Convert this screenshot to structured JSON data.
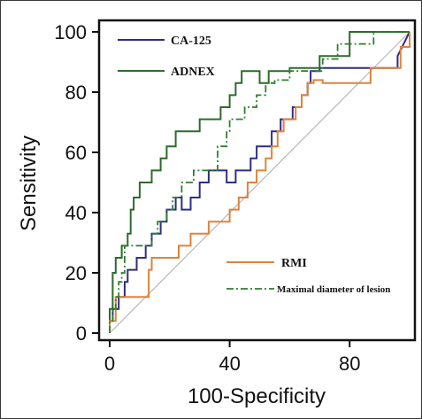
{
  "chart_data": {
    "type": "line",
    "title": "",
    "xlabel": "100-Specificity",
    "ylabel": "Sensitivity",
    "xlim": [
      0,
      100
    ],
    "ylim": [
      0,
      100
    ],
    "xticks": [
      "0",
      "40",
      "80"
    ],
    "yticks": [
      "0",
      "20",
      "40",
      "60",
      "80",
      "100"
    ],
    "grid": false,
    "legends": [
      {
        "placement": "top-left",
        "entries": [
          "CA-125",
          "ADNEX"
        ]
      },
      {
        "placement": "bottom-right",
        "entries": [
          "RMI",
          "Maximal diameter of lesion"
        ]
      }
    ],
    "diagonal_reference": true,
    "series": [
      {
        "name": "CA-125",
        "color": "#2e2e86",
        "dash": "solid",
        "x": [
          0,
          0,
          1,
          1,
          3,
          3,
          5,
          5,
          6,
          6,
          9,
          9,
          12,
          12,
          14,
          14,
          17,
          17,
          19,
          19,
          22,
          22,
          24,
          24,
          27,
          27,
          30,
          30,
          33,
          33,
          39,
          39,
          42,
          42,
          47,
          47,
          49,
          49,
          54,
          54,
          57,
          57,
          61,
          61,
          64,
          64,
          66,
          66,
          67,
          67,
          70,
          70,
          96,
          96,
          100
        ],
        "y": [
          0,
          4,
          4,
          8,
          8,
          12,
          12,
          17,
          17,
          21,
          21,
          25,
          25,
          29,
          29,
          33,
          33,
          37,
          37,
          41,
          41,
          45,
          45,
          41,
          41,
          45,
          45,
          50,
          50,
          54,
          54,
          50,
          50,
          54,
          54,
          58,
          58,
          62,
          62,
          67,
          67,
          71,
          71,
          75,
          75,
          79,
          79,
          83,
          83,
          87,
          87,
          88,
          88,
          92,
          100
        ]
      },
      {
        "name": "ADNEX",
        "color": "#2d6b2d",
        "dash": "solid",
        "x": [
          0,
          0,
          1,
          1,
          2,
          2,
          4,
          4,
          6,
          6,
          7,
          7,
          8,
          8,
          10,
          10,
          14,
          14,
          17,
          17,
          19,
          19,
          22,
          22,
          30,
          30,
          37,
          37,
          40,
          40,
          42,
          42,
          44,
          44,
          50,
          50,
          53,
          53,
          60,
          60,
          70,
          70,
          80,
          80,
          100,
          100
        ],
        "y": [
          0,
          8,
          8,
          20,
          20,
          25,
          25,
          29,
          29,
          33,
          33,
          41,
          41,
          45,
          45,
          50,
          50,
          54,
          54,
          58,
          58,
          62,
          62,
          67,
          67,
          71,
          71,
          75,
          75,
          79,
          79,
          83,
          83,
          87,
          87,
          83,
          83,
          87,
          87,
          88,
          88,
          92,
          92,
          100,
          100,
          100
        ]
      },
      {
        "name": "RMI",
        "color": "#e0833a",
        "dash": "solid",
        "x": [
          0,
          0,
          2,
          2,
          13,
          13,
          14,
          14,
          23,
          23,
          27,
          27,
          33,
          33,
          40,
          40,
          43,
          43,
          46,
          46,
          49,
          49,
          52,
          52,
          54,
          54,
          56,
          56,
          58,
          58,
          62,
          62,
          64,
          64,
          66,
          66,
          68,
          68,
          71,
          71,
          87,
          87,
          97,
          97,
          100,
          100
        ],
        "y": [
          0,
          4,
          4,
          12,
          12,
          21,
          21,
          25,
          25,
          29,
          29,
          33,
          33,
          37,
          37,
          41,
          41,
          45,
          45,
          50,
          50,
          54,
          54,
          58,
          58,
          62,
          62,
          67,
          67,
          71,
          71,
          75,
          75,
          79,
          79,
          83,
          83,
          84,
          84,
          83,
          83,
          88,
          88,
          95,
          95,
          100
        ]
      },
      {
        "name": "Maximal diameter of lesion",
        "color": "#2f7f2f",
        "dash": "dashdot",
        "x": [
          0,
          0,
          1,
          1,
          2,
          2,
          3,
          3,
          4,
          4,
          5,
          5,
          14,
          14,
          16,
          16,
          19,
          19,
          21,
          21,
          24,
          24,
          28,
          28,
          36,
          36,
          39,
          39,
          40,
          40,
          45,
          45,
          49,
          49,
          52,
          52,
          55,
          55,
          60,
          60,
          71,
          71,
          76,
          76,
          88,
          88,
          100
        ],
        "y": [
          0,
          4,
          4,
          8,
          8,
          12,
          12,
          17,
          17,
          20,
          20,
          29,
          29,
          33,
          33,
          37,
          37,
          41,
          41,
          45,
          45,
          50,
          50,
          54,
          54,
          62,
          62,
          67,
          67,
          71,
          71,
          75,
          75,
          79,
          79,
          83,
          83,
          84,
          84,
          87,
          87,
          91,
          91,
          96,
          96,
          100,
          100
        ]
      }
    ]
  }
}
